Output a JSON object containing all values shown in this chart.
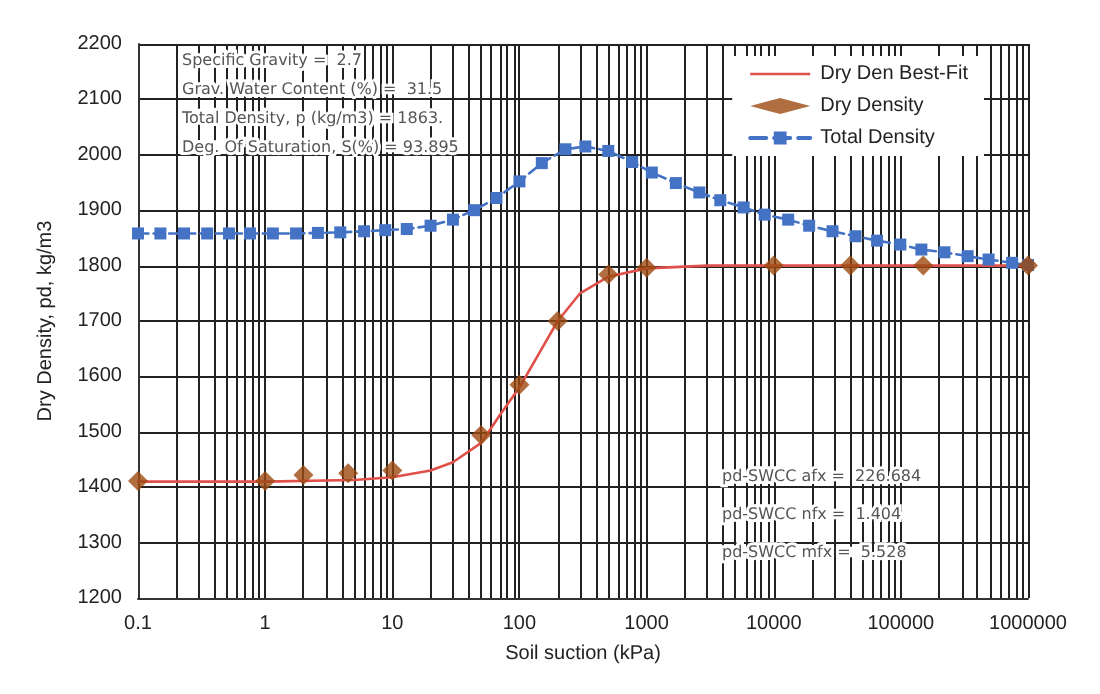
{
  "chart_data": {
    "type": "line",
    "xlabel": "Soil suction (kPa)",
    "ylabel": "Dry Density, pd, kg/m3",
    "log": "x",
    "grid": true,
    "legend": "top right",
    "xlim": [
      0.1,
      1000000
    ],
    "xticks": [
      {
        "value": 0.1,
        "label": "0.1"
      },
      1,
      10,
      100,
      1000,
      10000,
      100000,
      1000000
    ],
    "ylim": [
      1200,
      2200
    ],
    "yticks": [
      1200,
      1300,
      1400,
      1500,
      1600,
      1700,
      1800,
      1900,
      2000,
      2100,
      2200
    ],
    "series": [
      {
        "name": "Dry Den Best-Fit",
        "color": "#e0504a",
        "marker": "none",
        "line_style": "solid",
        "x": [
          0.1,
          1,
          5,
          10,
          20,
          30,
          50,
          70,
          100,
          150,
          200,
          300,
          500,
          1000,
          3000,
          1000000
        ],
        "values": [
          1410,
          1410,
          1413,
          1418,
          1430,
          1445,
          1480,
          1530,
          1580,
          1650,
          1700,
          1750,
          1780,
          1795,
          1800,
          1800
        ]
      },
      {
        "name": "Dry Density",
        "type": "scatter",
        "color": "#9c4a12",
        "marker": "diamond",
        "x": [
          0.1,
          1,
          2,
          4.5,
          10,
          50,
          100,
          200,
          500,
          1000,
          10000,
          40000,
          150000,
          1000000
        ],
        "values": [
          1411,
          1411,
          1422,
          1425,
          1430,
          1494,
          1585,
          1700,
          1784,
          1796,
          1800,
          1800,
          1800,
          1800
        ]
      },
      {
        "name": "Total Density",
        "color": "#4472c4",
        "marker": "square",
        "line_style": "dashed",
        "x": [
          0.1,
          0.15,
          0.23,
          0.35,
          0.52,
          0.76,
          1.15,
          1.75,
          2.6,
          3.9,
          6,
          8.8,
          13,
          20,
          30,
          44,
          66,
          100,
          150,
          230,
          330,
          500,
          770,
          1100,
          1700,
          2600,
          3800,
          5800,
          8500,
          13000,
          19000,
          29000,
          44000,
          65000,
          99000,
          145000,
          220000,
          335000,
          490000,
          750000,
          1000000
        ],
        "values": [
          1858,
          1858,
          1858,
          1858,
          1858,
          1858,
          1858,
          1858,
          1859,
          1860,
          1862,
          1864,
          1866,
          1872,
          1883,
          1900,
          1922,
          1952,
          1985,
          2010,
          2015,
          2007,
          1987,
          1968,
          1949,
          1932,
          1918,
          1905,
          1892,
          1883,
          1872,
          1862,
          1853,
          1845,
          1838,
          1829,
          1824,
          1817,
          1811,
          1805,
          1801
        ]
      }
    ],
    "annotations": [
      "Specific Gravity =  2.7",
      "Grav. Water Content (%) =  31.5",
      "Total Density, p (kg/m3) = 1863.",
      "Deg. Of Saturation, S(%) = 93.895",
      "pd-SWCC afx =  226.684",
      "pd-SWCC nfx =  1.404",
      "pd-SWCC mfx =  5.528"
    ]
  }
}
